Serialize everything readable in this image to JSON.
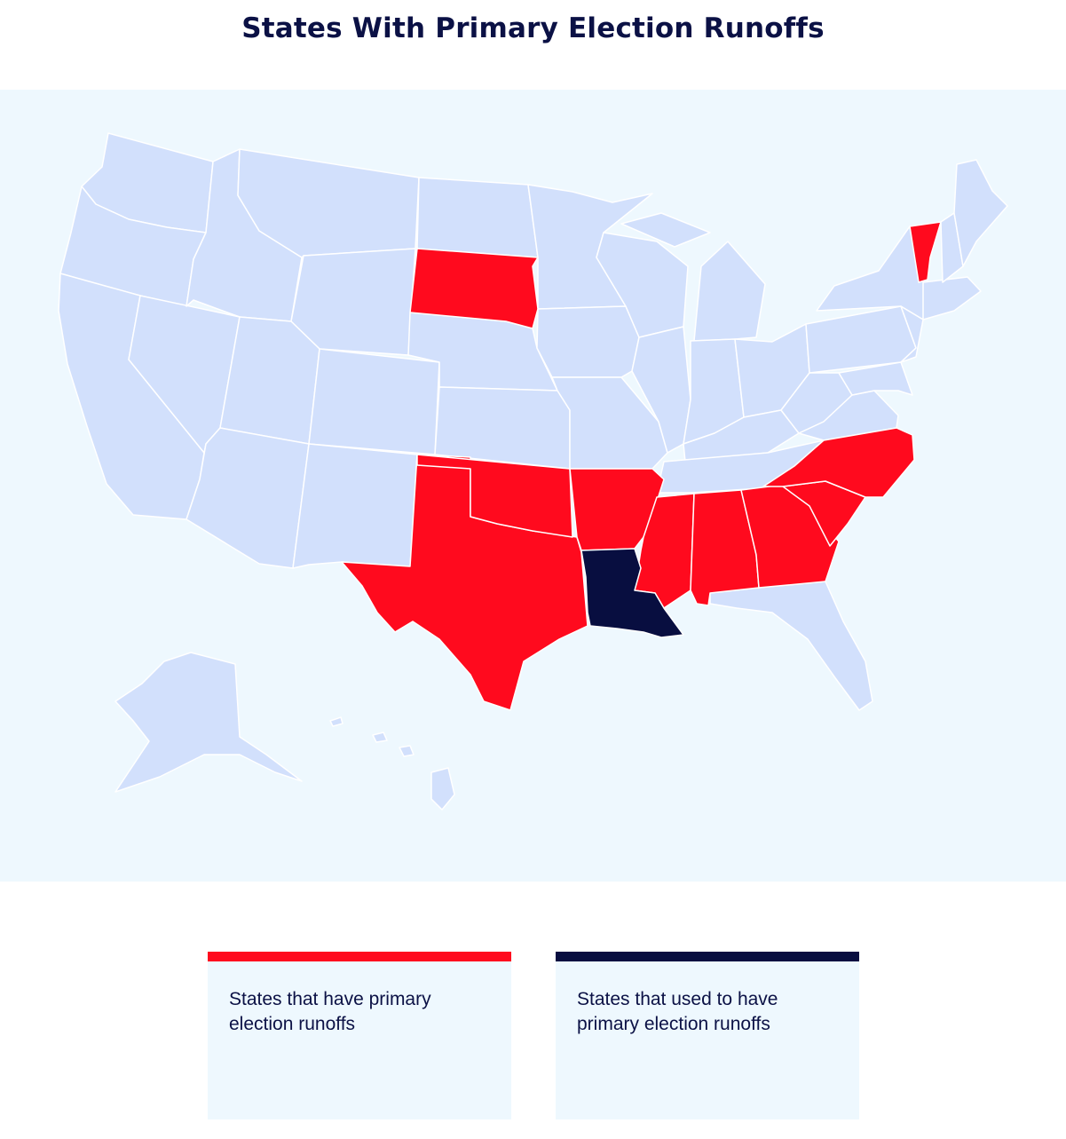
{
  "title": "States With Primary Election Runoffs",
  "colors": {
    "have_runoffs": "#ff0a1e",
    "used_to_have": "#080e40",
    "other_states": "#d2e0fc",
    "background": "#eef8fe",
    "border": "#ffffff"
  },
  "legend": [
    {
      "label": "States that have primary election runoffs",
      "color": "#ff0a1e"
    },
    {
      "label": "States that used to have primary election runoffs",
      "color": "#080e40"
    }
  ],
  "states_with_runoffs": [
    "South Dakota",
    "Vermont",
    "Texas",
    "Oklahoma",
    "Arkansas",
    "Mississippi",
    "Alabama",
    "Georgia",
    "South Carolina",
    "North Carolina"
  ],
  "states_formerly_with_runoffs": [
    "Louisiana"
  ]
}
